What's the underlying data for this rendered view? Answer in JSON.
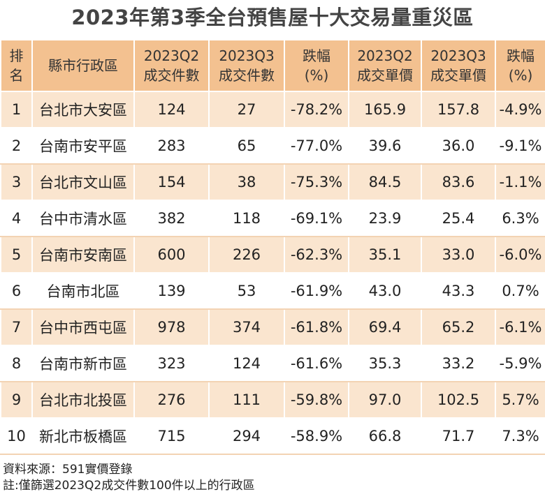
{
  "title": "2023年第3季全台預售屋十大交易量重災區",
  "chart_data": {
    "type": "table",
    "title": "2023年第3季全台預售屋十大交易量重災區",
    "columns": [
      {
        "line1": "排",
        "line2": "名"
      },
      {
        "line1": "縣市行政區",
        "line2": ""
      },
      {
        "line1": "2023Q2",
        "line2": "成交件數"
      },
      {
        "line1": "2023Q3",
        "line2": "成交件數"
      },
      {
        "line1": "跌幅",
        "line2": "(%)"
      },
      {
        "line1": "2023Q2",
        "line2": "成交單價"
      },
      {
        "line1": "2023Q3",
        "line2": "成交單價"
      },
      {
        "line1": "跌幅",
        "line2": "(%)"
      }
    ],
    "rows": [
      {
        "rank": "1",
        "district": "台北市大安區",
        "q2_count": "124",
        "q3_count": "27",
        "count_change": "-78.2%",
        "q2_price": "165.9",
        "q3_price": "157.8",
        "price_change": "-4.9%"
      },
      {
        "rank": "2",
        "district": "台南市安平區",
        "q2_count": "283",
        "q3_count": "65",
        "count_change": "-77.0%",
        "q2_price": "39.6",
        "q3_price": "36.0",
        "price_change": "-9.1%"
      },
      {
        "rank": "3",
        "district": "台北市文山區",
        "q2_count": "154",
        "q3_count": "38",
        "count_change": "-75.3%",
        "q2_price": "84.5",
        "q3_price": "83.6",
        "price_change": "-1.1%"
      },
      {
        "rank": "4",
        "district": "台中市清水區",
        "q2_count": "382",
        "q3_count": "118",
        "count_change": "-69.1%",
        "q2_price": "23.9",
        "q3_price": "25.4",
        "price_change": "6.3%"
      },
      {
        "rank": "5",
        "district": "台南市安南區",
        "q2_count": "600",
        "q3_count": "226",
        "count_change": "-62.3%",
        "q2_price": "35.1",
        "q3_price": "33.0",
        "price_change": "-6.0%"
      },
      {
        "rank": "6",
        "district": "台南市北區",
        "q2_count": "139",
        "q3_count": "53",
        "count_change": "-61.9%",
        "q2_price": "43.0",
        "q3_price": "43.3",
        "price_change": "0.7%"
      },
      {
        "rank": "7",
        "district": "台中市西屯區",
        "q2_count": "978",
        "q3_count": "374",
        "count_change": "-61.8%",
        "q2_price": "69.4",
        "q3_price": "65.2",
        "price_change": "-6.1%"
      },
      {
        "rank": "8",
        "district": "台南市新市區",
        "q2_count": "323",
        "q3_count": "124",
        "count_change": "-61.6%",
        "q2_price": "35.3",
        "q3_price": "33.2",
        "price_change": "-5.9%"
      },
      {
        "rank": "9",
        "district": "台北市北投區",
        "q2_count": "276",
        "q3_count": "111",
        "count_change": "-59.8%",
        "q2_price": "97.0",
        "q3_price": "102.5",
        "price_change": "5.7%"
      },
      {
        "rank": "10",
        "district": "新北市板橋區",
        "q2_count": "715",
        "q3_count": "294",
        "count_change": "-58.9%",
        "q2_price": "66.8",
        "q3_price": "71.7",
        "price_change": "7.3%"
      }
    ]
  },
  "footer": {
    "source": "資料來源：591實價登錄",
    "note": "註:僅篩選2023Q2成交件數100件以上的行政區"
  },
  "colors": {
    "header_bg": "#f3c190",
    "odd_row_bg": "#fae5cf",
    "even_row_bg": "#ffffff"
  }
}
